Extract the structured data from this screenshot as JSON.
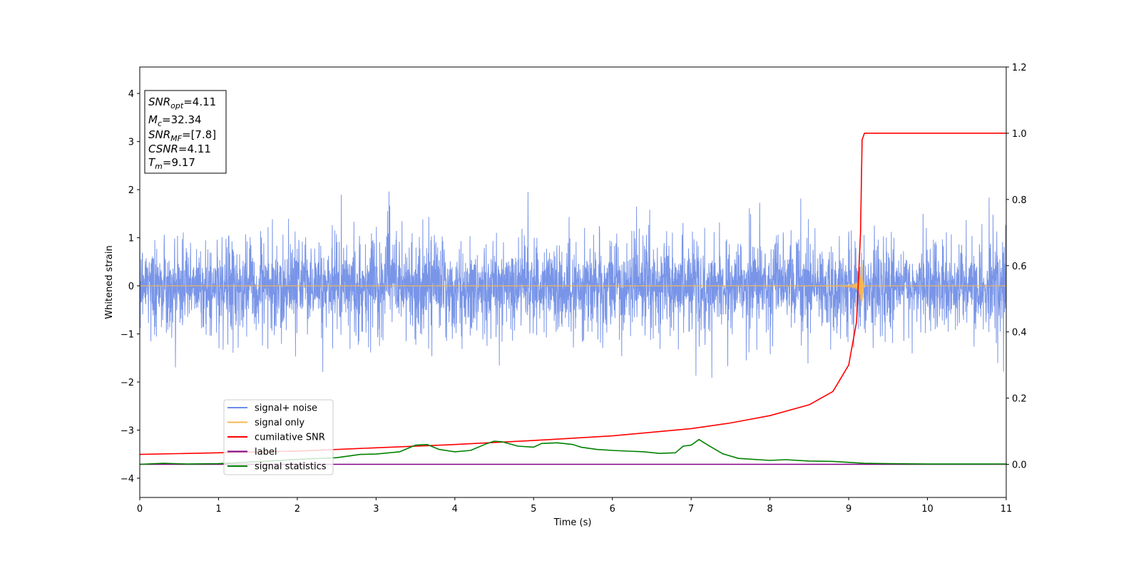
{
  "chart_data": {
    "type": "line",
    "xlabel": "Time (s)",
    "ylabel": "Whitened strain",
    "xlim": [
      0,
      11
    ],
    "ylim_left": [
      -4.4,
      4.55
    ],
    "ylim_right": [
      -0.1,
      1.2
    ],
    "x_ticks": [
      0,
      1,
      2,
      3,
      4,
      5,
      6,
      7,
      8,
      9,
      10,
      11
    ],
    "x_tick_labels": [
      "0",
      "1",
      "2",
      "3",
      "4",
      "5",
      "6",
      "7",
      "8",
      "9",
      "10",
      "11"
    ],
    "y_left_ticks": [
      -4,
      -3,
      -2,
      -1,
      0,
      1,
      2,
      3,
      4
    ],
    "y_left_tick_labels": [
      "−4",
      "−3",
      "−2",
      "−1",
      "0",
      "1",
      "2",
      "3",
      "4"
    ],
    "y_right_ticks": [
      0,
      0.2,
      0.4,
      0.6,
      0.8,
      1.0,
      1.2
    ],
    "y_right_tick_labels": [
      "0.0",
      "0.2",
      "0.4",
      "0.6",
      "0.8",
      "1.0",
      "1.2"
    ],
    "grid": false,
    "legend_placement": "lower-left",
    "series": [
      {
        "name": "signal+ noise",
        "axis": "left",
        "color": "#6a8ae6",
        "kind": "gaussian-noise",
        "std": 0.42,
        "x_range": [
          0,
          11
        ]
      },
      {
        "name": "signal only",
        "axis": "left",
        "color": "#f5b854",
        "kind": "chirp",
        "merger_time": 9.17,
        "peak_amplitude": 0.45
      },
      {
        "name": "cumilative SNR",
        "axis": "right",
        "color": "#ff0000",
        "x": [
          0,
          1,
          2,
          3,
          4,
          5,
          6,
          7,
          7.5,
          8,
          8.5,
          8.8,
          9.0,
          9.1,
          9.15,
          9.17,
          9.2,
          11
        ],
        "y": [
          0.03,
          0.035,
          0.04,
          0.05,
          0.06,
          0.072,
          0.086,
          0.108,
          0.125,
          0.147,
          0.18,
          0.22,
          0.3,
          0.43,
          0.7,
          0.98,
          1.0,
          1.0
        ]
      },
      {
        "name": "label",
        "axis": "right",
        "color": "#800080",
        "x": [
          0,
          11
        ],
        "y": [
          0,
          0
        ]
      },
      {
        "name": "signal statistics",
        "axis": "right",
        "color": "#008000",
        "x": [
          0,
          0.3,
          0.6,
          1.0,
          1.5,
          2.0,
          2.5,
          2.8,
          3.0,
          3.3,
          3.5,
          3.65,
          3.8,
          4.0,
          4.2,
          4.4,
          4.5,
          4.6,
          4.8,
          5.0,
          5.1,
          5.3,
          5.5,
          5.6,
          5.8,
          6.0,
          6.2,
          6.4,
          6.6,
          6.8,
          6.9,
          7.0,
          7.1,
          7.2,
          7.4,
          7.6,
          8.0,
          8.2,
          8.5,
          8.8,
          9.2,
          9.5,
          10,
          11
        ],
        "y": [
          0,
          0.003,
          0.001,
          0.002,
          0.008,
          0.015,
          0.02,
          0.03,
          0.031,
          0.038,
          0.058,
          0.06,
          0.045,
          0.038,
          0.042,
          0.062,
          0.07,
          0.068,
          0.055,
          0.052,
          0.063,
          0.065,
          0.06,
          0.052,
          0.045,
          0.042,
          0.04,
          0.038,
          0.033,
          0.035,
          0.055,
          0.058,
          0.075,
          0.06,
          0.032,
          0.018,
          0.012,
          0.014,
          0.01,
          0.009,
          0.003,
          0.002,
          0.001,
          0.001
        ]
      }
    ],
    "annotations": [
      {
        "var": "SNR",
        "sub": "opt",
        "value": "=4.11"
      },
      {
        "var": "M",
        "sub": "c",
        "value": "=32.34"
      },
      {
        "var": "SNR",
        "sub": "MF",
        "value": "=[7.8]"
      },
      {
        "var": "CSNR",
        "sub": "",
        "value": "=4.11"
      },
      {
        "var": "T",
        "sub": "m",
        "value": "=9.17"
      }
    ]
  }
}
